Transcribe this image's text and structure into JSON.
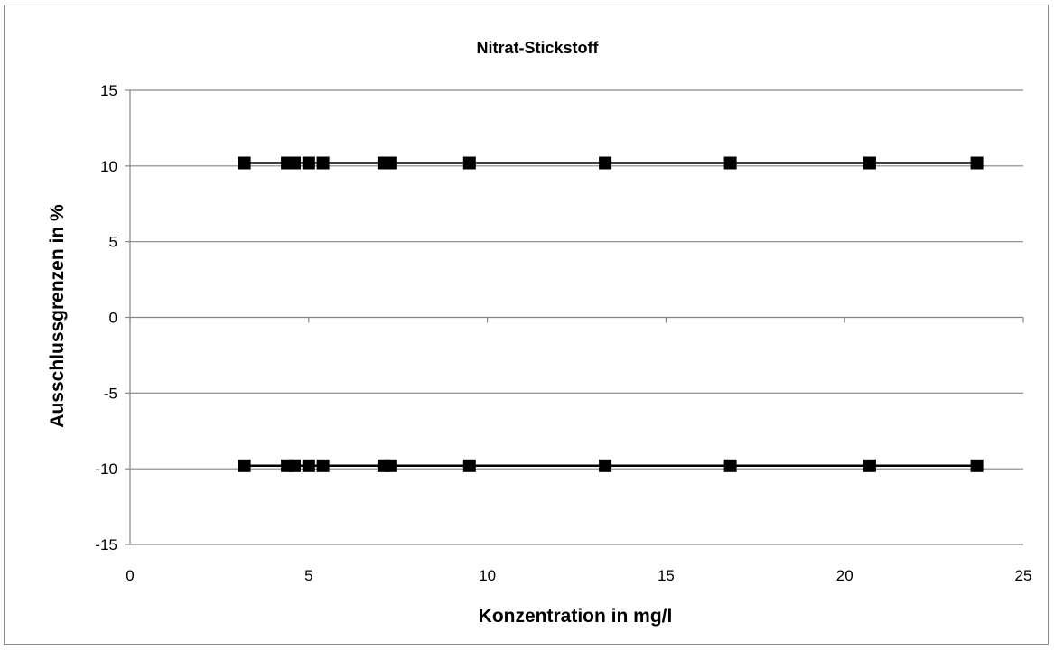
{
  "chart_data": {
    "type": "line",
    "title": "Nitrat-Stickstoff",
    "xlabel": "Konzentration in mg/l",
    "ylabel": "Ausschlussgrenzen in %",
    "xlim": [
      0,
      25
    ],
    "ylim": [
      -15,
      15
    ],
    "xticks": [
      0,
      5,
      10,
      15,
      20,
      25
    ],
    "yticks": [
      -15,
      -10,
      -5,
      0,
      5,
      10,
      15
    ],
    "grid": "horizontal",
    "series": [
      {
        "x": [
          3.2,
          4.4,
          4.6,
          5.0,
          5.4,
          7.1,
          7.3,
          9.5,
          13.3,
          16.8,
          20.7,
          23.7
        ],
        "y": [
          10.2,
          10.2,
          10.2,
          10.2,
          10.2,
          10.2,
          10.2,
          10.2,
          10.2,
          10.2,
          10.2,
          10.2
        ]
      },
      {
        "x": [
          3.2,
          4.4,
          4.6,
          5.0,
          5.4,
          7.1,
          7.3,
          9.5,
          13.3,
          16.8,
          20.7,
          23.7
        ],
        "y": [
          -9.8,
          -9.8,
          -9.8,
          -9.8,
          -9.8,
          -9.8,
          -9.8,
          -9.8,
          -9.8,
          -9.8,
          -9.8,
          -9.8
        ]
      }
    ]
  },
  "colors": {
    "line": "#000000",
    "marker": "#000000",
    "grid": "#868686",
    "axis": "#868686"
  }
}
